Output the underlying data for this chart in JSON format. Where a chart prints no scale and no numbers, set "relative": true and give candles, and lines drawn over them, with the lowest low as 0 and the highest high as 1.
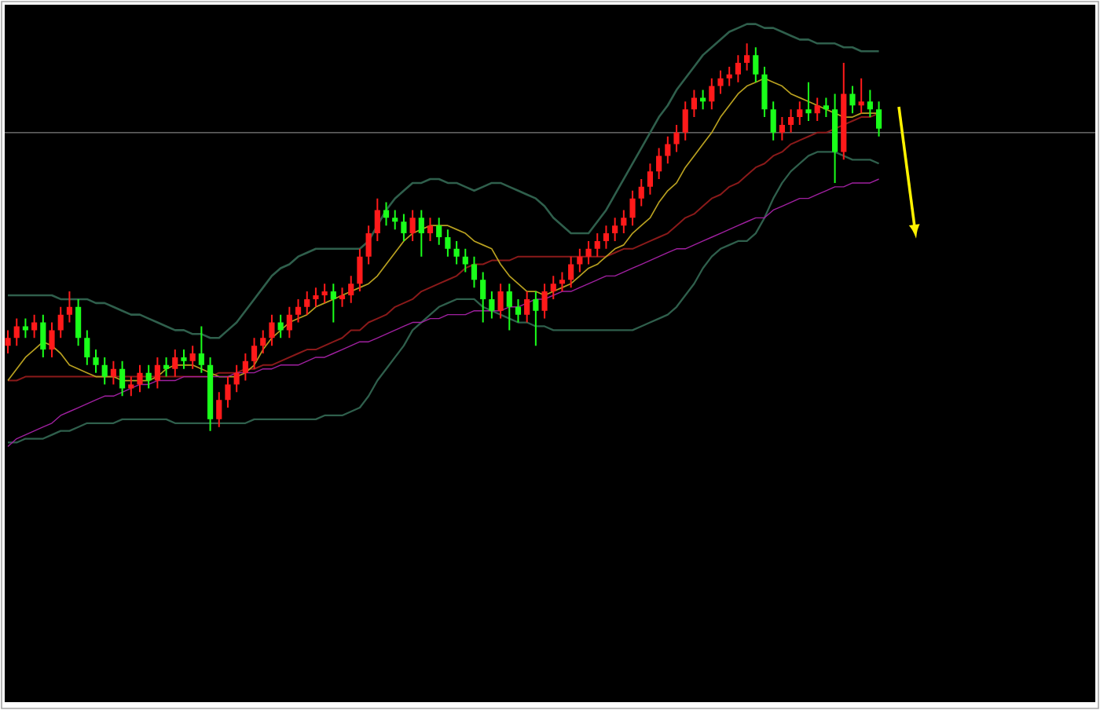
{
  "chart_data": {
    "type": "candlestick",
    "relative": true,
    "categories": [
      null,
      null,
      null,
      null,
      null,
      null,
      null,
      null,
      null,
      null,
      null,
      null,
      null,
      null,
      null,
      null,
      null,
      null,
      null,
      null,
      null,
      null,
      null,
      null,
      null,
      null,
      null,
      null,
      null,
      null,
      null,
      null,
      null,
      null,
      null,
      null,
      null,
      null,
      null,
      null,
      null,
      null,
      null,
      null,
      null,
      null,
      null,
      null,
      null,
      null,
      null,
      null,
      null,
      null,
      null,
      null,
      null,
      null,
      null,
      null,
      null,
      null,
      null,
      null,
      null,
      null,
      null,
      null,
      null,
      null,
      null,
      null,
      null,
      null,
      null,
      null,
      null,
      null,
      null,
      null,
      null,
      null,
      null,
      null,
      null,
      null,
      null,
      null,
      null,
      null,
      null,
      null,
      null,
      null,
      null,
      null,
      null,
      null,
      null,
      null
    ],
    "ohlc": [
      [
        0.22,
        0.26,
        0.2,
        0.24
      ],
      [
        0.24,
        0.29,
        0.22,
        0.27
      ],
      [
        0.27,
        0.29,
        0.24,
        0.26
      ],
      [
        0.26,
        0.3,
        0.24,
        0.28
      ],
      [
        0.28,
        0.3,
        0.19,
        0.21
      ],
      [
        0.21,
        0.28,
        0.19,
        0.26
      ],
      [
        0.26,
        0.32,
        0.24,
        0.3
      ],
      [
        0.3,
        0.36,
        0.28,
        0.32
      ],
      [
        0.32,
        0.34,
        0.22,
        0.24
      ],
      [
        0.24,
        0.26,
        0.17,
        0.19
      ],
      [
        0.19,
        0.21,
        0.15,
        0.17
      ],
      [
        0.17,
        0.19,
        0.12,
        0.14
      ],
      [
        0.14,
        0.18,
        0.12,
        0.16
      ],
      [
        0.16,
        0.18,
        0.09,
        0.11
      ],
      [
        0.11,
        0.14,
        0.09,
        0.12
      ],
      [
        0.12,
        0.17,
        0.1,
        0.15
      ],
      [
        0.15,
        0.17,
        0.11,
        0.13
      ],
      [
        0.13,
        0.19,
        0.11,
        0.17
      ],
      [
        0.17,
        0.19,
        0.14,
        0.16
      ],
      [
        0.16,
        0.21,
        0.14,
        0.19
      ],
      [
        0.19,
        0.21,
        0.16,
        0.18
      ],
      [
        0.18,
        0.22,
        0.16,
        0.2
      ],
      [
        0.2,
        0.27,
        0.15,
        0.17
      ],
      [
        0.17,
        0.19,
        0.0,
        0.03
      ],
      [
        0.03,
        0.1,
        0.01,
        0.08
      ],
      [
        0.08,
        0.14,
        0.06,
        0.12
      ],
      [
        0.12,
        0.17,
        0.1,
        0.15
      ],
      [
        0.15,
        0.2,
        0.13,
        0.18
      ],
      [
        0.18,
        0.24,
        0.16,
        0.22
      ],
      [
        0.22,
        0.26,
        0.2,
        0.24
      ],
      [
        0.24,
        0.3,
        0.22,
        0.28
      ],
      [
        0.28,
        0.3,
        0.24,
        0.26
      ],
      [
        0.26,
        0.32,
        0.24,
        0.3
      ],
      [
        0.3,
        0.34,
        0.28,
        0.32
      ],
      [
        0.32,
        0.36,
        0.3,
        0.34
      ],
      [
        0.34,
        0.37,
        0.32,
        0.35
      ],
      [
        0.35,
        0.38,
        0.33,
        0.36
      ],
      [
        0.36,
        0.38,
        0.28,
        0.34
      ],
      [
        0.34,
        0.37,
        0.32,
        0.35
      ],
      [
        0.35,
        0.4,
        0.33,
        0.38
      ],
      [
        0.38,
        0.47,
        0.36,
        0.45
      ],
      [
        0.45,
        0.53,
        0.43,
        0.51
      ],
      [
        0.51,
        0.6,
        0.49,
        0.57
      ],
      [
        0.57,
        0.59,
        0.53,
        0.55
      ],
      [
        0.55,
        0.57,
        0.52,
        0.54
      ],
      [
        0.54,
        0.56,
        0.49,
        0.51
      ],
      [
        0.51,
        0.57,
        0.49,
        0.55
      ],
      [
        0.55,
        0.57,
        0.45,
        0.51
      ],
      [
        0.51,
        0.55,
        0.49,
        0.53
      ],
      [
        0.53,
        0.55,
        0.48,
        0.5
      ],
      [
        0.5,
        0.52,
        0.45,
        0.47
      ],
      [
        0.47,
        0.49,
        0.43,
        0.45
      ],
      [
        0.45,
        0.47,
        0.41,
        0.43
      ],
      [
        0.43,
        0.45,
        0.37,
        0.39
      ],
      [
        0.39,
        0.41,
        0.28,
        0.34
      ],
      [
        0.34,
        0.36,
        0.29,
        0.31
      ],
      [
        0.31,
        0.38,
        0.29,
        0.36
      ],
      [
        0.36,
        0.38,
        0.26,
        0.32
      ],
      [
        0.32,
        0.34,
        0.28,
        0.3
      ],
      [
        0.3,
        0.36,
        0.28,
        0.34
      ],
      [
        0.34,
        0.36,
        0.22,
        0.31
      ],
      [
        0.31,
        0.38,
        0.29,
        0.36
      ],
      [
        0.36,
        0.4,
        0.34,
        0.38
      ],
      [
        0.38,
        0.41,
        0.36,
        0.39
      ],
      [
        0.39,
        0.45,
        0.37,
        0.43
      ],
      [
        0.43,
        0.47,
        0.41,
        0.45
      ],
      [
        0.45,
        0.49,
        0.43,
        0.47
      ],
      [
        0.47,
        0.51,
        0.45,
        0.49
      ],
      [
        0.49,
        0.53,
        0.47,
        0.51
      ],
      [
        0.51,
        0.55,
        0.49,
        0.53
      ],
      [
        0.53,
        0.57,
        0.51,
        0.55
      ],
      [
        0.55,
        0.62,
        0.53,
        0.6
      ],
      [
        0.6,
        0.65,
        0.58,
        0.63
      ],
      [
        0.63,
        0.69,
        0.61,
        0.67
      ],
      [
        0.67,
        0.73,
        0.65,
        0.71
      ],
      [
        0.71,
        0.76,
        0.69,
        0.74
      ],
      [
        0.74,
        0.79,
        0.72,
        0.77
      ],
      [
        0.77,
        0.85,
        0.75,
        0.83
      ],
      [
        0.83,
        0.88,
        0.81,
        0.86
      ],
      [
        0.86,
        0.88,
        0.83,
        0.85
      ],
      [
        0.85,
        0.91,
        0.83,
        0.89
      ],
      [
        0.89,
        0.93,
        0.87,
        0.91
      ],
      [
        0.91,
        0.94,
        0.89,
        0.92
      ],
      [
        0.92,
        0.97,
        0.9,
        0.95
      ],
      [
        0.95,
        1.0,
        0.93,
        0.97
      ],
      [
        0.97,
        0.99,
        0.9,
        0.92
      ],
      [
        0.92,
        0.94,
        0.81,
        0.83
      ],
      [
        0.83,
        0.85,
        0.75,
        0.77
      ],
      [
        0.77,
        0.81,
        0.75,
        0.79
      ],
      [
        0.79,
        0.83,
        0.77,
        0.81
      ],
      [
        0.81,
        0.85,
        0.79,
        0.83
      ],
      [
        0.83,
        0.9,
        0.8,
        0.82
      ],
      [
        0.82,
        0.86,
        0.8,
        0.84
      ],
      [
        0.84,
        0.86,
        0.81,
        0.83
      ],
      [
        0.83,
        0.87,
        0.64,
        0.72
      ],
      [
        0.72,
        0.95,
        0.7,
        0.87
      ],
      [
        0.87,
        0.89,
        0.82,
        0.84
      ],
      [
        0.84,
        0.91,
        0.82,
        0.85
      ],
      [
        0.85,
        0.88,
        0.81,
        0.83
      ],
      [
        0.83,
        0.85,
        0.76,
        0.78
      ]
    ],
    "colors": [
      "#ff1a1a",
      "#ff1a1a",
      "#1aff1a",
      "#ff1a1a",
      "#1aff1a",
      "#ff1a1a",
      "#ff1a1a",
      "#ff1a1a",
      "#1aff1a",
      "#1aff1a",
      "#1aff1a",
      "#1aff1a",
      "#ff1a1a",
      "#1aff1a",
      "#ff1a1a",
      "#ff1a1a",
      "#1aff1a",
      "#ff1a1a",
      "#1aff1a",
      "#ff1a1a",
      "#1aff1a",
      "#ff1a1a",
      "#1aff1a",
      "#1aff1a",
      "#ff1a1a",
      "#ff1a1a",
      "#ff1a1a",
      "#ff1a1a",
      "#ff1a1a",
      "#ff1a1a",
      "#ff1a1a",
      "#1aff1a",
      "#ff1a1a",
      "#ff1a1a",
      "#ff1a1a",
      "#ff1a1a",
      "#ff1a1a",
      "#1aff1a",
      "#ff1a1a",
      "#ff1a1a",
      "#ff1a1a",
      "#ff1a1a",
      "#ff1a1a",
      "#1aff1a",
      "#1aff1a",
      "#1aff1a",
      "#ff1a1a",
      "#1aff1a",
      "#ff1a1a",
      "#1aff1a",
      "#1aff1a",
      "#1aff1a",
      "#1aff1a",
      "#1aff1a",
      "#1aff1a",
      "#1aff1a",
      "#ff1a1a",
      "#1aff1a",
      "#1aff1a",
      "#ff1a1a",
      "#1aff1a",
      "#ff1a1a",
      "#ff1a1a",
      "#ff1a1a",
      "#ff1a1a",
      "#ff1a1a",
      "#ff1a1a",
      "#ff1a1a",
      "#ff1a1a",
      "#ff1a1a",
      "#ff1a1a",
      "#ff1a1a",
      "#ff1a1a",
      "#ff1a1a",
      "#ff1a1a",
      "#ff1a1a",
      "#ff1a1a",
      "#ff1a1a",
      "#ff1a1a",
      "#1aff1a",
      "#ff1a1a",
      "#ff1a1a",
      "#ff1a1a",
      "#ff1a1a",
      "#ff1a1a",
      "#1aff1a",
      "#1aff1a",
      "#1aff1a",
      "#ff1a1a",
      "#ff1a1a",
      "#ff1a1a",
      "#1aff1a",
      "#ff1a1a",
      "#1aff1a",
      "#1aff1a",
      "#ff1a1a",
      "#1aff1a",
      "#ff1a1a",
      "#1aff1a",
      "#1aff1a"
    ],
    "series": [
      {
        "type": "line",
        "color": "#2f5f4c",
        "values": [
          0.35,
          0.35,
          0.35,
          0.35,
          0.35,
          0.35,
          0.34,
          0.34,
          0.34,
          0.34,
          0.33,
          0.33,
          0.32,
          0.31,
          0.3,
          0.3,
          0.29,
          0.28,
          0.27,
          0.26,
          0.26,
          0.25,
          0.25,
          0.24,
          0.24,
          0.26,
          0.28,
          0.31,
          0.34,
          0.37,
          0.4,
          0.42,
          0.43,
          0.45,
          0.46,
          0.47,
          0.47,
          0.47,
          0.47,
          0.47,
          0.47,
          0.49,
          0.53,
          0.57,
          0.6,
          0.62,
          0.64,
          0.64,
          0.65,
          0.65,
          0.64,
          0.64,
          0.63,
          0.62,
          0.63,
          0.64,
          0.64,
          0.63,
          0.62,
          0.61,
          0.6,
          0.58,
          0.55,
          0.53,
          0.51,
          0.51,
          0.51,
          0.54,
          0.57,
          0.61,
          0.65,
          0.69,
          0.73,
          0.77,
          0.81,
          0.84,
          0.88,
          0.91,
          0.94,
          0.97,
          0.99,
          1.01,
          1.03,
          1.04,
          1.05,
          1.05,
          1.04,
          1.04,
          1.03,
          1.02,
          1.01,
          1.01,
          1.0,
          1.0,
          1.0,
          0.99,
          0.99,
          0.98,
          0.98,
          0.98
        ]
      },
      {
        "type": "line",
        "color": "#2f5f4c",
        "values": [
          -0.03,
          -0.03,
          -0.02,
          -0.02,
          -0.02,
          -0.01,
          0.0,
          0.0,
          0.01,
          0.02,
          0.02,
          0.02,
          0.02,
          0.03,
          0.03,
          0.03,
          0.03,
          0.03,
          0.03,
          0.02,
          0.02,
          0.02,
          0.02,
          0.02,
          0.02,
          0.02,
          0.02,
          0.02,
          0.03,
          0.03,
          0.03,
          0.03,
          0.03,
          0.03,
          0.03,
          0.03,
          0.04,
          0.04,
          0.04,
          0.05,
          0.06,
          0.09,
          0.13,
          0.16,
          0.19,
          0.22,
          0.26,
          0.28,
          0.3,
          0.32,
          0.33,
          0.34,
          0.34,
          0.34,
          0.32,
          0.31,
          0.3,
          0.29,
          0.28,
          0.28,
          0.27,
          0.27,
          0.26,
          0.26,
          0.26,
          0.26,
          0.26,
          0.26,
          0.26,
          0.26,
          0.26,
          0.26,
          0.27,
          0.28,
          0.29,
          0.3,
          0.32,
          0.35,
          0.38,
          0.42,
          0.45,
          0.47,
          0.48,
          0.49,
          0.49,
          0.51,
          0.55,
          0.6,
          0.64,
          0.67,
          0.69,
          0.71,
          0.72,
          0.72,
          0.72,
          0.71,
          0.7,
          0.7,
          0.7,
          0.69
        ]
      },
      {
        "type": "line",
        "color": "#8b1a1a",
        "values": [
          0.13,
          0.13,
          0.14,
          0.14,
          0.14,
          0.14,
          0.14,
          0.14,
          0.14,
          0.14,
          0.14,
          0.14,
          0.14,
          0.14,
          0.14,
          0.14,
          0.14,
          0.14,
          0.14,
          0.14,
          0.14,
          0.14,
          0.14,
          0.14,
          0.15,
          0.15,
          0.15,
          0.16,
          0.16,
          0.17,
          0.17,
          0.18,
          0.19,
          0.2,
          0.21,
          0.21,
          0.22,
          0.23,
          0.24,
          0.26,
          0.26,
          0.28,
          0.29,
          0.3,
          0.32,
          0.33,
          0.34,
          0.36,
          0.37,
          0.38,
          0.39,
          0.4,
          0.42,
          0.43,
          0.43,
          0.44,
          0.44,
          0.44,
          0.45,
          0.45,
          0.45,
          0.45,
          0.45,
          0.45,
          0.45,
          0.45,
          0.45,
          0.45,
          0.45,
          0.46,
          0.47,
          0.47,
          0.48,
          0.49,
          0.5,
          0.51,
          0.53,
          0.55,
          0.56,
          0.58,
          0.6,
          0.61,
          0.63,
          0.64,
          0.66,
          0.68,
          0.69,
          0.71,
          0.72,
          0.74,
          0.75,
          0.76,
          0.77,
          0.77,
          0.78,
          0.79,
          0.8,
          0.81,
          0.81,
          0.82
        ]
      },
      {
        "type": "line",
        "color": "#b8a020",
        "values": [
          0.13,
          0.16,
          0.19,
          0.21,
          0.23,
          0.22,
          0.2,
          0.17,
          0.16,
          0.15,
          0.14,
          0.14,
          0.14,
          0.13,
          0.13,
          0.13,
          0.13,
          0.14,
          0.16,
          0.17,
          0.17,
          0.17,
          0.16,
          0.15,
          0.14,
          0.14,
          0.14,
          0.15,
          0.17,
          0.21,
          0.24,
          0.26,
          0.28,
          0.29,
          0.3,
          0.32,
          0.33,
          0.34,
          0.35,
          0.36,
          0.37,
          0.38,
          0.4,
          0.43,
          0.46,
          0.49,
          0.51,
          0.52,
          0.53,
          0.53,
          0.53,
          0.52,
          0.51,
          0.49,
          0.48,
          0.47,
          0.43,
          0.4,
          0.38,
          0.36,
          0.36,
          0.35,
          0.36,
          0.37,
          0.38,
          0.4,
          0.42,
          0.43,
          0.45,
          0.47,
          0.48,
          0.51,
          0.53,
          0.55,
          0.59,
          0.62,
          0.64,
          0.68,
          0.71,
          0.74,
          0.77,
          0.81,
          0.84,
          0.87,
          0.89,
          0.9,
          0.91,
          0.9,
          0.89,
          0.87,
          0.86,
          0.85,
          0.84,
          0.83,
          0.82,
          0.81,
          0.81,
          0.82,
          0.82,
          0.82
        ]
      },
      {
        "type": "line",
        "color": "#a020a0",
        "values": [
          -0.04,
          -0.02,
          -0.01,
          0.0,
          0.01,
          0.02,
          0.04,
          0.05,
          0.06,
          0.07,
          0.08,
          0.09,
          0.09,
          0.1,
          0.11,
          0.12,
          0.12,
          0.13,
          0.13,
          0.13,
          0.14,
          0.14,
          0.14,
          0.14,
          0.14,
          0.14,
          0.15,
          0.15,
          0.15,
          0.16,
          0.16,
          0.17,
          0.17,
          0.17,
          0.18,
          0.19,
          0.19,
          0.2,
          0.21,
          0.22,
          0.23,
          0.23,
          0.24,
          0.25,
          0.26,
          0.27,
          0.28,
          0.28,
          0.29,
          0.29,
          0.3,
          0.3,
          0.3,
          0.31,
          0.31,
          0.31,
          0.31,
          0.32,
          0.32,
          0.33,
          0.34,
          0.34,
          0.35,
          0.36,
          0.36,
          0.37,
          0.38,
          0.39,
          0.4,
          0.4,
          0.41,
          0.42,
          0.43,
          0.44,
          0.45,
          0.46,
          0.47,
          0.47,
          0.48,
          0.49,
          0.5,
          0.51,
          0.52,
          0.53,
          0.54,
          0.55,
          0.55,
          0.57,
          0.58,
          0.59,
          0.6,
          0.6,
          0.61,
          0.62,
          0.63,
          0.63,
          0.64,
          0.64,
          0.64,
          0.65
        ]
      }
    ],
    "ref_lines": [
      {
        "axis": "y",
        "value": 0.77,
        "color": "#7f7f7f"
      }
    ]
  }
}
